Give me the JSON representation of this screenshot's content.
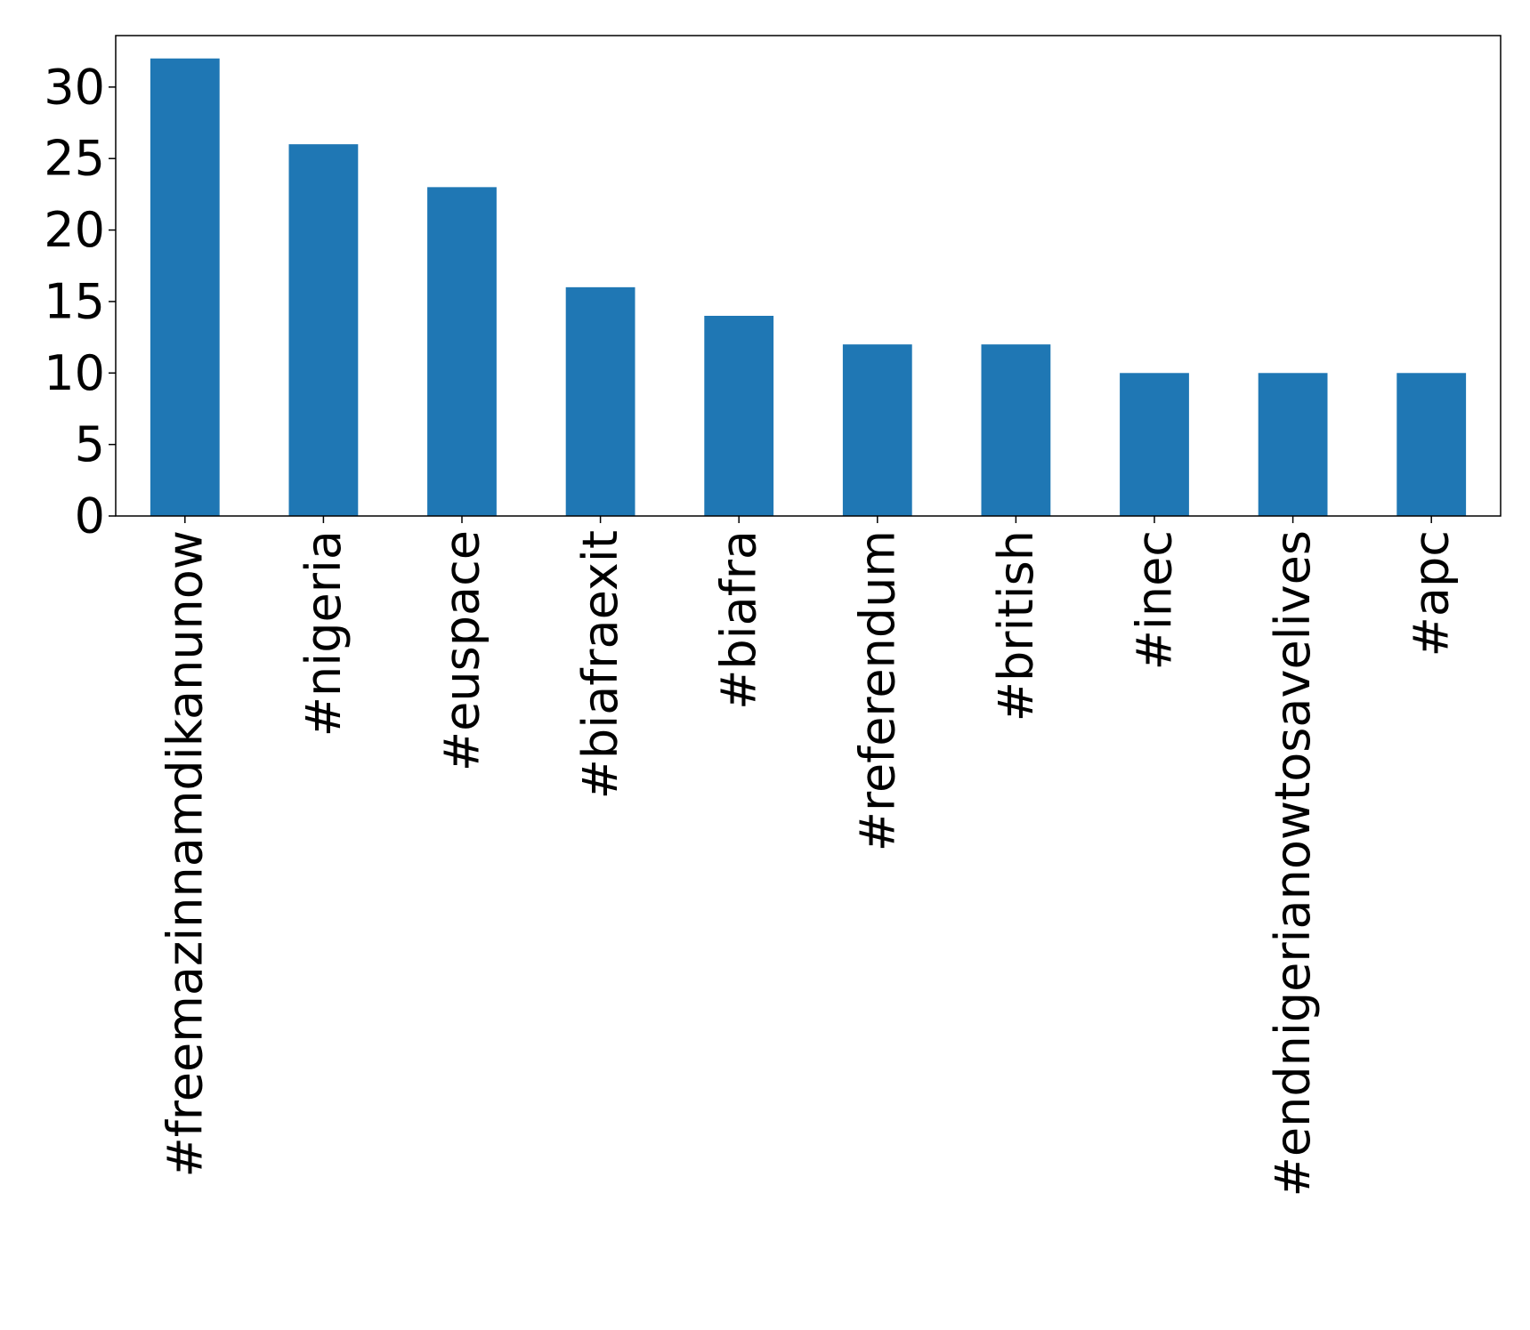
{
  "chart_data": {
    "type": "bar",
    "categories": [
      "#freemazinnamdikanunow",
      "#nigeria",
      "#euspace",
      "#biafraexit",
      "#biafra",
      "#referendum",
      "#british",
      "#inec",
      "#endnigerianowtosavelives",
      "#apc"
    ],
    "values": [
      32,
      26,
      23,
      16,
      14,
      12,
      12,
      10,
      10,
      10
    ],
    "title": "",
    "xlabel": "",
    "ylabel": "",
    "ylim": [
      0,
      33.6
    ],
    "yticks": [
      0,
      5,
      10,
      15,
      20,
      25,
      30
    ],
    "ytick_labels": [
      "0",
      "5",
      "10",
      "15",
      "20",
      "25",
      "30"
    ],
    "bar_color": "#1f77b4",
    "grid": false,
    "legend": "none"
  }
}
